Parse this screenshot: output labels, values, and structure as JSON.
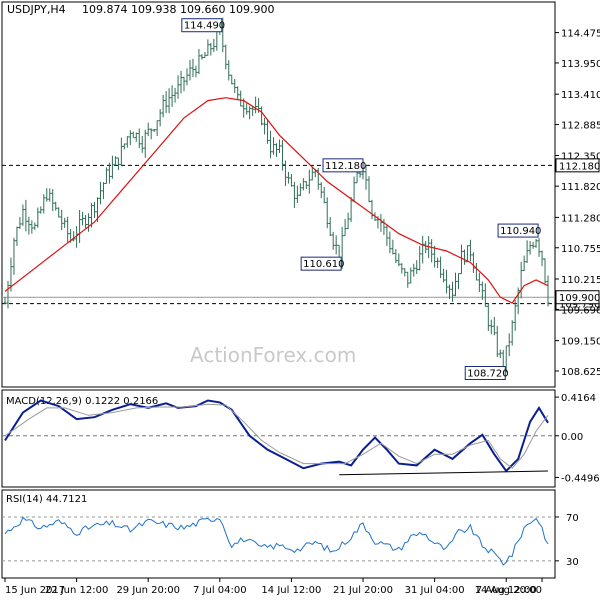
{
  "header": {
    "symbol": "USDJPY,H4",
    "ohlc": "109.874 109.938 109.660 109.900"
  },
  "watermark": "ActionForex.com",
  "chart_data": [
    {
      "type": "candlestick",
      "panel": "price",
      "ylim": [
        108.4,
        114.9
      ],
      "y_ticks": [
        "114.475",
        "113.950",
        "113.410",
        "112.885",
        "112.350",
        "111.820",
        "111.280",
        "110.755",
        "110.215",
        "109.690",
        "109.150",
        "108.625"
      ],
      "x_ticks": [
        "15 Jun 2017",
        "22 Jun 12:00",
        "29 Jun 20:00",
        "7 Jul 04:00",
        "14 Jul 12:00",
        "21 Jul 20:00",
        "31 Jul 04:00",
        "7 Aug 12:00",
        "14 Aug 20:00"
      ],
      "level_lines": [
        {
          "value": 112.18,
          "label": "112.180",
          "style": "dashed",
          "color": "#000000"
        },
        {
          "value": 109.79,
          "label": "109.790",
          "style": "dashed",
          "color": "#000000"
        },
        {
          "value": 109.9,
          "label": "109.900",
          "style": "solid",
          "color": "#999999"
        }
      ],
      "annotations": [
        "114.490",
        "112.180",
        "110.610",
        "110.940",
        "108.720"
      ],
      "close_path": [
        [
          0,
          109.8
        ],
        [
          3,
          110.9
        ],
        [
          6,
          111.4
        ],
        [
          10,
          111.1
        ],
        [
          14,
          111.7
        ],
        [
          18,
          111.3
        ],
        [
          22,
          110.9
        ],
        [
          26,
          111.2
        ],
        [
          30,
          111.5
        ],
        [
          34,
          112.0
        ],
        [
          38,
          112.3
        ],
        [
          42,
          112.8
        ],
        [
          46,
          112.6
        ],
        [
          50,
          112.9
        ],
        [
          54,
          113.3
        ],
        [
          58,
          113.5
        ],
        [
          62,
          113.8
        ],
        [
          66,
          114.0
        ],
        [
          70,
          114.3
        ],
        [
          72,
          114.49
        ],
        [
          75,
          113.8
        ],
        [
          78,
          113.3
        ],
        [
          82,
          113.2
        ],
        [
          86,
          113.0
        ],
        [
          89,
          112.5
        ],
        [
          92,
          112.4
        ],
        [
          95,
          111.9
        ],
        [
          98,
          111.6
        ],
        [
          101,
          111.9
        ],
        [
          104,
          112.1
        ],
        [
          107,
          111.5
        ],
        [
          110,
          110.9
        ],
        [
          112,
          110.61
        ],
        [
          115,
          111.3
        ],
        [
          118,
          112.0
        ],
        [
          120,
          112.18
        ],
        [
          123,
          111.4
        ],
        [
          126,
          111.2
        ],
        [
          129,
          110.8
        ],
        [
          132,
          110.4
        ],
        [
          135,
          110.2
        ],
        [
          138,
          110.5
        ],
        [
          141,
          110.8
        ],
        [
          144,
          110.6
        ],
        [
          147,
          110.3
        ],
        [
          150,
          110.0
        ],
        [
          153,
          110.6
        ],
        [
          156,
          110.7
        ],
        [
          159,
          110.1
        ],
        [
          162,
          109.5
        ],
        [
          165,
          109.0
        ],
        [
          167,
          108.72
        ],
        [
          170,
          109.4
        ],
        [
          173,
          110.3
        ],
        [
          176,
          110.8
        ],
        [
          178,
          110.94
        ],
        [
          180,
          110.6
        ],
        [
          182,
          109.9
        ]
      ],
      "series": [
        {
          "name": "",
          "color": "#e01010",
          "points": [
            [
              0,
              110.0
            ],
            [
              10,
              110.4
            ],
            [
              20,
              110.8
            ],
            [
              30,
              111.2
            ],
            [
              40,
              111.8
            ],
            [
              50,
              112.4
            ],
            [
              60,
              113.0
            ],
            [
              68,
              113.3
            ],
            [
              74,
              113.35
            ],
            [
              80,
              113.3
            ],
            [
              86,
              113.1
            ],
            [
              92,
              112.7
            ],
            [
              100,
              112.3
            ],
            [
              108,
              111.9
            ],
            [
              116,
              111.6
            ],
            [
              124,
              111.3
            ],
            [
              132,
              111.0
            ],
            [
              140,
              110.8
            ],
            [
              148,
              110.7
            ],
            [
              156,
              110.5
            ],
            [
              162,
              110.2
            ],
            [
              166,
              109.9
            ],
            [
              170,
              109.8
            ],
            [
              174,
              110.1
            ],
            [
              178,
              110.2
            ],
            [
              182,
              110.1
            ]
          ]
        }
      ],
      "x_count": 183
    },
    {
      "type": "line",
      "panel": "macd",
      "title": "MACD(12,26,9) 0.1222 0.2166",
      "ylim": [
        -0.52,
        0.45
      ],
      "y_ticks": [
        "0.4164",
        "0.00",
        "-0.4496"
      ],
      "series": [
        {
          "name": "",
          "color": "#0a1f8f",
          "points": [
            [
              0,
              -0.05
            ],
            [
              6,
              0.25
            ],
            [
              12,
              0.38
            ],
            [
              18,
              0.32
            ],
            [
              24,
              0.18
            ],
            [
              30,
              0.2
            ],
            [
              36,
              0.28
            ],
            [
              42,
              0.34
            ],
            [
              48,
              0.3
            ],
            [
              54,
              0.35
            ],
            [
              58,
              0.3
            ],
            [
              64,
              0.32
            ],
            [
              68,
              0.38
            ],
            [
              72,
              0.36
            ],
            [
              76,
              0.28
            ],
            [
              82,
              0.0
            ],
            [
              88,
              -0.15
            ],
            [
              94,
              -0.25
            ],
            [
              100,
              -0.35
            ],
            [
              106,
              -0.3
            ],
            [
              112,
              -0.28
            ],
            [
              116,
              -0.32
            ],
            [
              120,
              -0.15
            ],
            [
              124,
              -0.02
            ],
            [
              128,
              -0.15
            ],
            [
              132,
              -0.3
            ],
            [
              138,
              -0.32
            ],
            [
              144,
              -0.15
            ],
            [
              150,
              -0.25
            ],
            [
              156,
              -0.08
            ],
            [
              160,
              0.01
            ],
            [
              164,
              -0.2
            ],
            [
              168,
              -0.38
            ],
            [
              172,
              -0.25
            ],
            [
              176,
              0.15
            ],
            [
              179,
              0.3
            ],
            [
              182,
              0.14
            ]
          ]
        },
        {
          "name": "",
          "color": "#999999",
          "points": [
            [
              0,
              0.0
            ],
            [
              8,
              0.18
            ],
            [
              14,
              0.3
            ],
            [
              20,
              0.3
            ],
            [
              28,
              0.22
            ],
            [
              36,
              0.25
            ],
            [
              44,
              0.3
            ],
            [
              52,
              0.31
            ],
            [
              60,
              0.31
            ],
            [
              68,
              0.34
            ],
            [
              74,
              0.33
            ],
            [
              80,
              0.15
            ],
            [
              86,
              -0.05
            ],
            [
              92,
              -0.18
            ],
            [
              100,
              -0.3
            ],
            [
              108,
              -0.3
            ],
            [
              114,
              -0.3
            ],
            [
              120,
              -0.2
            ],
            [
              126,
              -0.08
            ],
            [
              132,
              -0.22
            ],
            [
              138,
              -0.3
            ],
            [
              144,
              -0.2
            ],
            [
              150,
              -0.2
            ],
            [
              156,
              -0.1
            ],
            [
              162,
              -0.05
            ],
            [
              166,
              -0.25
            ],
            [
              170,
              -0.35
            ],
            [
              174,
              -0.2
            ],
            [
              178,
              0.05
            ],
            [
              182,
              0.22
            ]
          ]
        },
        {
          "name": "",
          "color": "#000000",
          "points": [
            [
              112,
              -0.42
            ],
            [
              182,
              -0.38
            ]
          ]
        }
      ]
    },
    {
      "type": "line",
      "panel": "rsi",
      "title": "RSI(14) 44.7121",
      "ylim": [
        18,
        80
      ],
      "y_ticks": [
        "70",
        "30"
      ],
      "levels": [
        70,
        30
      ],
      "series": [
        {
          "name": "",
          "color": "#1e73c8",
          "points": [
            [
              0,
              55
            ],
            [
              6,
              68
            ],
            [
              12,
              60
            ],
            [
              18,
              66
            ],
            [
              24,
              56
            ],
            [
              30,
              62
            ],
            [
              36,
              64
            ],
            [
              42,
              58
            ],
            [
              48,
              66
            ],
            [
              54,
              63
            ],
            [
              60,
              60
            ],
            [
              66,
              66
            ],
            [
              72,
              70
            ],
            [
              76,
              44
            ],
            [
              80,
              50
            ],
            [
              86,
              42
            ],
            [
              92,
              44
            ],
            [
              98,
              40
            ],
            [
              104,
              47
            ],
            [
              110,
              38
            ],
            [
              116,
              52
            ],
            [
              120,
              64
            ],
            [
              124,
              48
            ],
            [
              128,
              44
            ],
            [
              132,
              40
            ],
            [
              136,
              52
            ],
            [
              140,
              56
            ],
            [
              144,
              46
            ],
            [
              148,
              40
            ],
            [
              152,
              56
            ],
            [
              156,
              60
            ],
            [
              160,
              44
            ],
            [
              164,
              36
            ],
            [
              167,
              28
            ],
            [
              170,
              36
            ],
            [
              174,
              60
            ],
            [
              178,
              70
            ],
            [
              180,
              60
            ],
            [
              182,
              44.7
            ]
          ]
        }
      ]
    }
  ]
}
